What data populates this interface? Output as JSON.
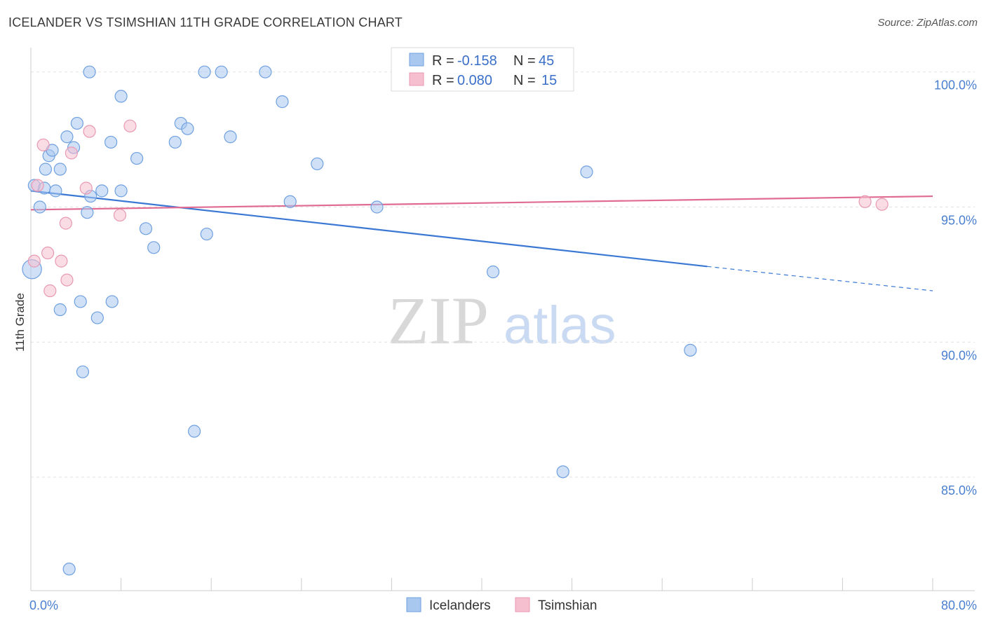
{
  "header": {
    "title": "ICELANDER VS TSIMSHIAN 11TH GRADE CORRELATION CHART",
    "source": "Source: ZipAtlas.com"
  },
  "watermark": {
    "part1": "ZIP",
    "part2": "atlas"
  },
  "chart_data": {
    "type": "scatter",
    "xlabel": "",
    "ylabel": "11th Grade",
    "xlim": [
      0,
      80
    ],
    "ylim": [
      80.8,
      100.9
    ],
    "x_tick_labels": [
      {
        "value": 0,
        "label": "0.0%"
      },
      {
        "value": 80,
        "label": "80.0%"
      }
    ],
    "x_minor_ticks": [
      0,
      8,
      16,
      24,
      32,
      40,
      48,
      56,
      64,
      72,
      80
    ],
    "y_ticks": [
      {
        "value": 100,
        "label": "100.0%"
      },
      {
        "value": 95,
        "label": "95.0%"
      },
      {
        "value": 90,
        "label": "90.0%"
      },
      {
        "value": 85,
        "label": "85.0%"
      }
    ],
    "grid": true,
    "legend_position": "top-center",
    "legend": [
      {
        "r_label": "R = ",
        "r_value": "-0.158",
        "n_label": "N = ",
        "n_value": "45",
        "color": "#a9c8f0",
        "stroke": "#6fa0e0"
      },
      {
        "r_label": "R = ",
        "r_value": "0.080",
        "n_label": "N = ",
        "n_value": "15",
        "color": "#f6bfd0",
        "stroke": "#e899b2"
      }
    ],
    "series": [
      {
        "name": "Icelanders",
        "color": "#a9c8f0",
        "stroke": "#6fa0e0",
        "line_color": "#3a78d4",
        "trend": {
          "x0": 0,
          "y0": 95.6,
          "x1": 60,
          "y1": 92.8,
          "dash_to_x": 80,
          "dash_to_y": 91.9
        },
        "points": [
          [
            0.1,
            92.7,
            16
          ],
          [
            0.3,
            95.8,
            10
          ],
          [
            0.8,
            95.0,
            10
          ],
          [
            1.2,
            95.7,
            10
          ],
          [
            1.3,
            96.4,
            10
          ],
          [
            1.6,
            96.9,
            10
          ],
          [
            1.9,
            97.1,
            10
          ],
          [
            2.2,
            95.6,
            10
          ],
          [
            2.6,
            96.4,
            10
          ],
          [
            3.2,
            97.6,
            10
          ],
          [
            3.8,
            97.2,
            10
          ],
          [
            4.1,
            98.1,
            10
          ],
          [
            5.0,
            94.8,
            10
          ],
          [
            5.2,
            100.0,
            10
          ],
          [
            5.3,
            95.4,
            10
          ],
          [
            6.3,
            95.6,
            10
          ],
          [
            7.1,
            97.4,
            10
          ],
          [
            8.0,
            95.6,
            10
          ],
          [
            8.0,
            99.1,
            10
          ],
          [
            9.4,
            96.8,
            10
          ],
          [
            10.2,
            94.2,
            10
          ],
          [
            10.9,
            93.5,
            10
          ],
          [
            12.8,
            97.4,
            10
          ],
          [
            13.3,
            98.1,
            10
          ],
          [
            13.9,
            97.9,
            10
          ],
          [
            15.4,
            100.0,
            10
          ],
          [
            15.6,
            94.0,
            10
          ],
          [
            16.9,
            100.0,
            10
          ],
          [
            17.7,
            97.6,
            10
          ],
          [
            20.8,
            100.0,
            10
          ],
          [
            22.3,
            98.9,
            10
          ],
          [
            23.0,
            95.2,
            10
          ],
          [
            25.4,
            96.6,
            10
          ],
          [
            30.7,
            95.0,
            10
          ],
          [
            41.0,
            92.6,
            10
          ],
          [
            47.2,
            85.2,
            10
          ],
          [
            49.3,
            96.3,
            10
          ],
          [
            58.5,
            89.7,
            10
          ],
          [
            2.6,
            91.2,
            10
          ],
          [
            4.4,
            91.5,
            10
          ],
          [
            5.9,
            90.9,
            10
          ],
          [
            7.2,
            91.5,
            10
          ],
          [
            4.6,
            88.9,
            10
          ],
          [
            14.5,
            86.7,
            10
          ],
          [
            3.4,
            81.6,
            10
          ]
        ]
      },
      {
        "name": "Tsimshian",
        "color": "#f6bfd0",
        "stroke": "#e899b2",
        "line_color": "#e06b93",
        "trend": {
          "x0": 0,
          "y0": 94.9,
          "x1": 80,
          "y1": 95.4
        },
        "points": [
          [
            0.3,
            93.0,
            10
          ],
          [
            0.6,
            95.8,
            10
          ],
          [
            1.1,
            97.3,
            10
          ],
          [
            1.5,
            93.3,
            10
          ],
          [
            1.7,
            91.9,
            10
          ],
          [
            2.7,
            93.0,
            10
          ],
          [
            3.1,
            94.4,
            10
          ],
          [
            3.2,
            92.3,
            10
          ],
          [
            3.6,
            97.0,
            10
          ],
          [
            4.9,
            95.7,
            10
          ],
          [
            5.2,
            97.8,
            10
          ],
          [
            7.9,
            94.7,
            10
          ],
          [
            8.8,
            98.0,
            10
          ],
          [
            74.0,
            95.2,
            10
          ],
          [
            75.5,
            95.1,
            10
          ]
        ]
      }
    ]
  }
}
